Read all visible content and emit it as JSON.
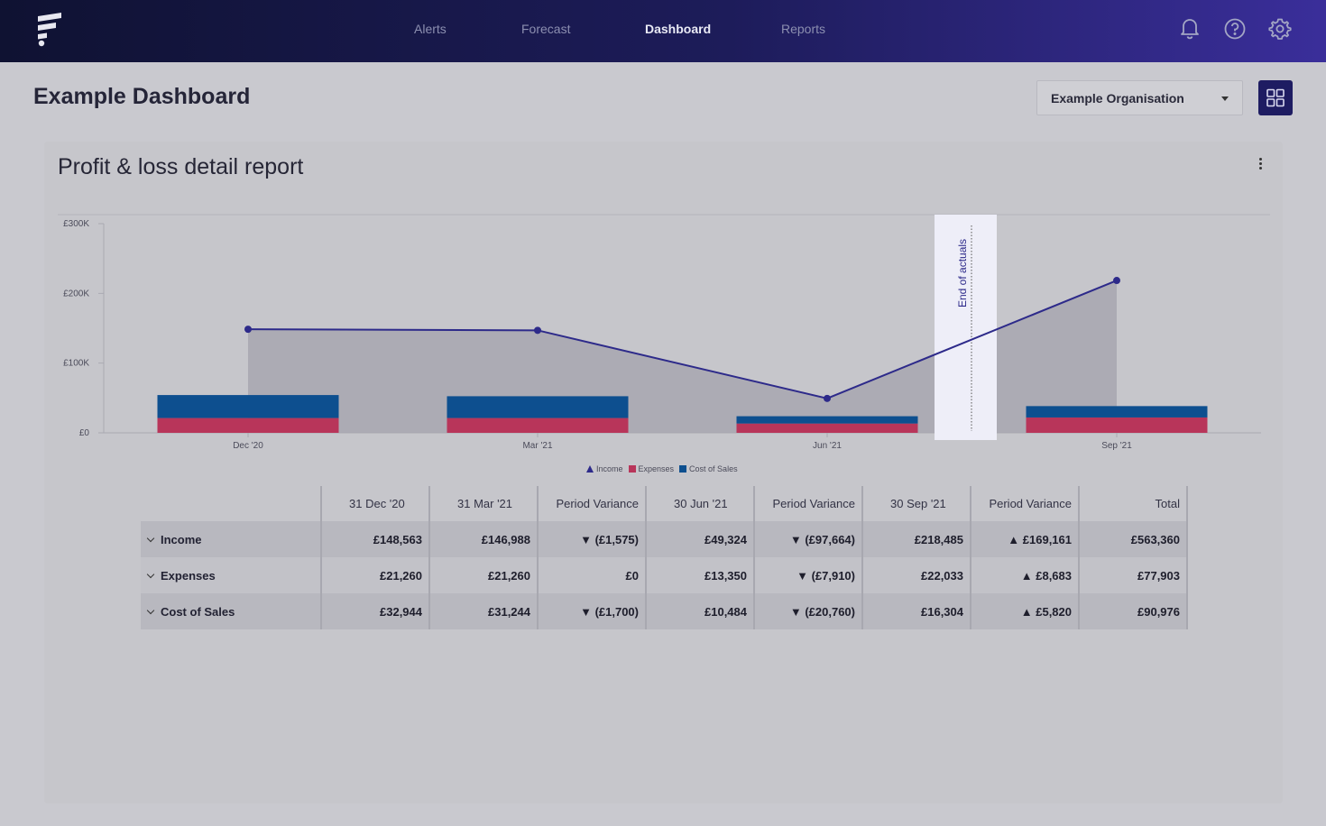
{
  "nav": {
    "links": [
      {
        "label": "Alerts",
        "active": false
      },
      {
        "label": "Forecast",
        "active": false
      },
      {
        "label": "Dashboard",
        "active": true
      },
      {
        "label": "Reports",
        "active": false
      }
    ],
    "icons": [
      "bell-icon",
      "help-icon",
      "gear-icon"
    ]
  },
  "page": {
    "title": "Example Dashboard",
    "org_select": "Example Organisation"
  },
  "card": {
    "title": "Profit & loss detail report"
  },
  "colors": {
    "income": "#2d2a8a",
    "expenses": "#b8355a",
    "cost_of_sales": "#0d4f8f",
    "area": "#a7a6b0",
    "variance_good": "#1e8a8f",
    "variance_bad": "#b52e4f"
  },
  "chart_data": {
    "type": "bar",
    "categories": [
      "Dec '20",
      "Mar '21",
      "Jun '21",
      "Sep '21"
    ],
    "series": [
      {
        "name": "Income",
        "kind": "line",
        "values": [
          148563,
          146988,
          49324,
          218485
        ]
      },
      {
        "name": "Expenses",
        "kind": "stacked-bar",
        "values": [
          21260,
          21260,
          13350,
          22033
        ]
      },
      {
        "name": "Cost of Sales",
        "kind": "stacked-bar",
        "values": [
          32944,
          31244,
          10484,
          16304
        ]
      }
    ],
    "ylim": [
      0,
      300000
    ],
    "yticks": [
      0,
      100000,
      200000,
      300000
    ],
    "ytick_labels": [
      "£0",
      "£100K",
      "£200K",
      "£300K"
    ],
    "annotation": "End of actuals",
    "legend": [
      "Income",
      "Expenses",
      "Cost of Sales"
    ],
    "legend_position": "bottom"
  },
  "table": {
    "headers": [
      "",
      "31 Dec '20",
      "31 Mar '21",
      "Period Variance",
      "30 Jun '21",
      "Period Variance",
      "30 Sep '21",
      "Period Variance",
      "Total"
    ],
    "rows": [
      {
        "label": "Income",
        "cells": [
          "£148,563",
          "£146,988",
          "▼ (£1,575)",
          "£49,324",
          "▼ (£97,664)",
          "£218,485",
          "▲ £169,161",
          "£563,360"
        ],
        "variance_class": [
          "",
          "",
          "var-down-bad",
          "",
          "var-down-bad",
          "",
          "var-up-good",
          ""
        ]
      },
      {
        "label": "Expenses",
        "cells": [
          "£21,260",
          "£21,260",
          "£0",
          "£13,350",
          "▼ (£7,910)",
          "£22,033",
          "▲ £8,683",
          "£77,903"
        ],
        "variance_class": [
          "",
          "",
          "",
          "",
          "var-down-good",
          "",
          "var-up-bad",
          ""
        ]
      },
      {
        "label": "Cost of Sales",
        "cells": [
          "£32,944",
          "£31,244",
          "▼ (£1,700)",
          "£10,484",
          "▼ (£20,760)",
          "£16,304",
          "▲ £5,820",
          "£90,976"
        ],
        "variance_class": [
          "",
          "",
          "var-down-good",
          "",
          "var-down-good",
          "",
          "var-up-bad",
          ""
        ]
      }
    ]
  }
}
